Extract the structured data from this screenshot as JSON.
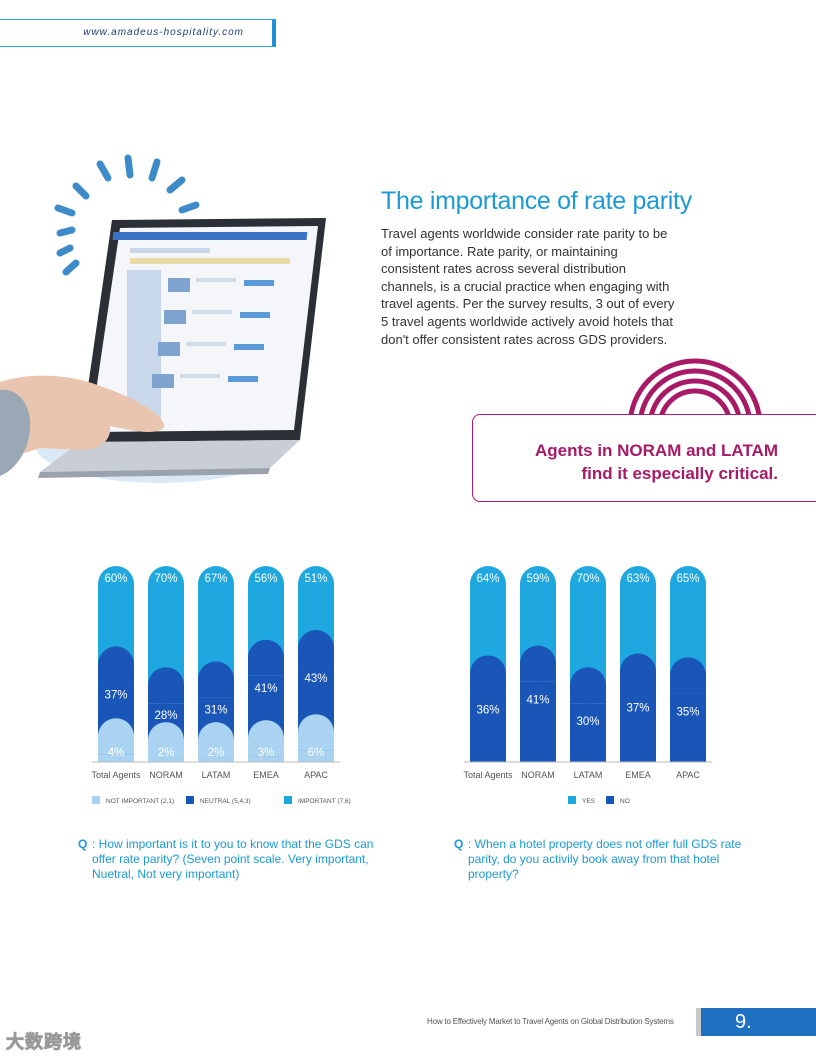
{
  "header": {
    "url": "www.amadeus-hospitality.com"
  },
  "article": {
    "title": "The importance of rate parity",
    "body": "Travel agents worldwide consider rate parity to be of importance. Rate parity, or maintaining consistent rates across several distribution channels, is a crucial practice when engaging with travel agents. Per the survey results, 3 out of every 5 travel agents worldwide actively avoid hotels that don't offer consistent rates across GDS providers."
  },
  "callout": {
    "line1": "Agents in NORAM and LATAM",
    "line2": "find it especially critical."
  },
  "colors": {
    "light": "#a9d3f0",
    "dark": "#1a56b8",
    "bright": "#1fa7e0",
    "magenta": "#a81a66"
  },
  "chart_data": [
    {
      "type": "bar",
      "stacked": true,
      "categories": [
        "Total Agents",
        "NORAM",
        "LATAM",
        "EMEA",
        "APAC"
      ],
      "series": [
        {
          "name": "NOT IMPORTANT (2,1)",
          "values": [
            4,
            2,
            2,
            3,
            6
          ],
          "labels": [
            "4%",
            "2%",
            "2%",
            "3%",
            "6%"
          ]
        },
        {
          "name": "NEUTRAL (5,4,3)",
          "values": [
            37,
            28,
            31,
            41,
            43
          ],
          "labels": [
            "37%",
            "28%",
            "31%",
            "41%",
            "43%"
          ]
        },
        {
          "name": "IMPORTANT (7,6)",
          "values": [
            60,
            70,
            67,
            56,
            51
          ],
          "labels": [
            "60%",
            "70%",
            "67%",
            "56%",
            "51%"
          ]
        }
      ],
      "ylim": [
        0,
        100
      ],
      "legend": "bottom",
      "question_marker": "Q",
      "question": ": How important is it to you to know that the GDS can offer rate parity? (Seven point scale. Very important, Nuetral, Not very important)"
    },
    {
      "type": "bar",
      "stacked": true,
      "categories": [
        "Total Agents",
        "NORAM",
        "LATAM",
        "EMEA",
        "APAC"
      ],
      "series": [
        {
          "name": "NO",
          "values": [
            36,
            41,
            30,
            37,
            35
          ],
          "labels": [
            "36%",
            "41%",
            "30%",
            "37%",
            "35%"
          ]
        },
        {
          "name": "YES",
          "values": [
            64,
            59,
            70,
            63,
            65
          ],
          "labels": [
            "64%",
            "59%",
            "70%",
            "63%",
            "65%"
          ]
        }
      ],
      "legend_order": [
        "YES",
        "NO"
      ],
      "ylim": [
        0,
        100
      ],
      "legend": "bottom",
      "question_marker": "Q",
      "question": ": When a hotel property does not offer full GDS rate parity, do you activily book away from that hotel property?"
    }
  ],
  "footer": {
    "text": "How to Effectively Market to Travel Agents on Global Distribution Systems",
    "page_number": "9.",
    "watermark": "大数跨境"
  }
}
